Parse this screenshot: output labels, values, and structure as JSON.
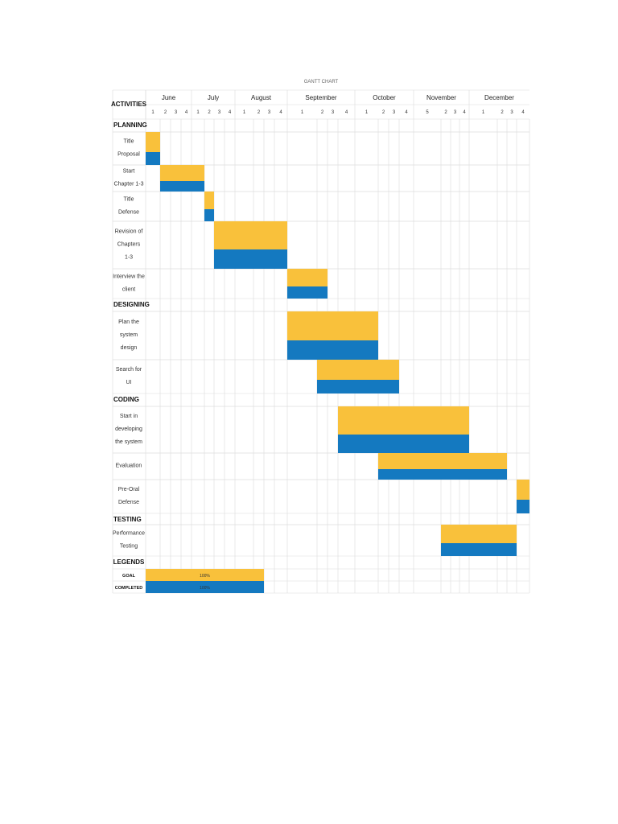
{
  "chart_data": {
    "type": "gantt",
    "title": "GANTT CHART",
    "activities_header": "ACTIVITIES",
    "months": [
      {
        "name": "June",
        "weeks": [
          "1",
          "2",
          "3",
          "4"
        ]
      },
      {
        "name": "July",
        "weeks": [
          "1",
          "2",
          "3",
          "4"
        ]
      },
      {
        "name": "August",
        "weeks": [
          "1",
          "2",
          "3",
          "4"
        ]
      },
      {
        "name": "September",
        "weeks": [
          "1",
          "2",
          "3",
          "4"
        ]
      },
      {
        "name": "October",
        "weeks": [
          "1",
          "2",
          "3",
          "4"
        ]
      },
      {
        "name": "November",
        "weeks": [
          "5",
          "2",
          "3",
          "4"
        ]
      },
      {
        "name": "December",
        "weeks": [
          "1",
          "2",
          "3",
          "4"
        ]
      }
    ],
    "sections": [
      {
        "name": "PLANNING",
        "tasks": [
          {
            "label": [
              "Title",
              "Proposal"
            ],
            "start": "June wk 1",
            "end": "June wk 1"
          },
          {
            "label": [
              "Start",
              "Chapter 1-3"
            ],
            "start": "June wk 2",
            "end": "July wk 1"
          },
          {
            "label": [
              "Title",
              "Defense"
            ],
            "start": "July wk 2",
            "end": "July wk 2"
          },
          {
            "label": [
              "Revision of",
              "Chapters",
              "1-3"
            ],
            "start": "July wk 3",
            "end": "August wk 4"
          },
          {
            "label": [
              "Interview the",
              "client"
            ],
            "start": "September wk 1",
            "end": "September wk 2"
          }
        ]
      },
      {
        "name": "DESIGNING",
        "tasks": [
          {
            "label": [
              "Plan the",
              "system",
              "design"
            ],
            "start": "September wk 1",
            "end": "October wk 1"
          },
          {
            "label": [
              "Search for",
              "UI"
            ],
            "start": "September wk 2",
            "end": "October wk 3"
          }
        ]
      },
      {
        "name": "CODING",
        "tasks": [
          {
            "label": [
              "Start in",
              "developing",
              "the system"
            ],
            "start": "September wk 4",
            "end": "November wk 4"
          },
          {
            "label": [
              "Evaluation"
            ],
            "start": "October wk 2",
            "end": "December wk 2"
          },
          {
            "label": [
              "Pre-Oral",
              "Defense"
            ],
            "start": "December wk 4",
            "end": "December wk 4"
          }
        ]
      },
      {
        "name": "TESTING",
        "tasks": [
          {
            "label": [
              "Performance",
              "Testing"
            ],
            "start": "November wk 2",
            "end": "December wk 3"
          }
        ]
      }
    ],
    "legend": {
      "title": "LEGENDS",
      "items": [
        {
          "label": "GOAL",
          "value": "100%",
          "color": "#f9c13b"
        },
        {
          "label": "COMPLETED",
          "value": "100%",
          "color": "#1479c0"
        }
      ]
    },
    "colors": {
      "goal": "#f9c13b",
      "completed": "#1479c0"
    }
  }
}
